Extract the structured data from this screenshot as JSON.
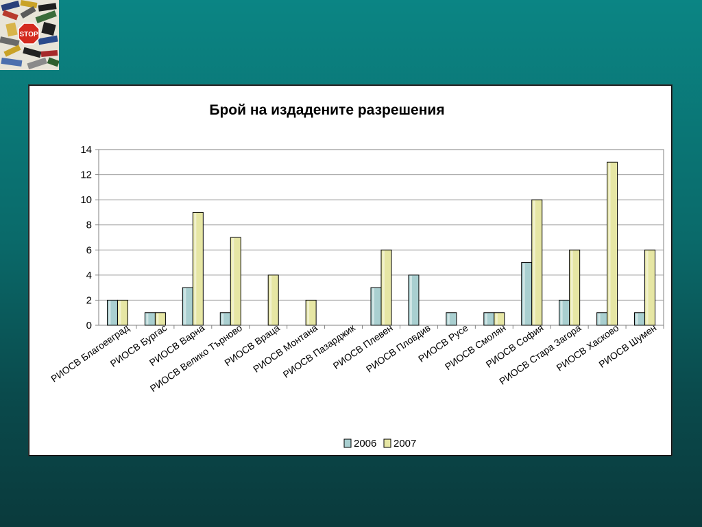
{
  "colors": {
    "series_2006": "#a9cfd0",
    "series_2007": "#e6e6a4",
    "grid": "#9a9a9a",
    "axis": "#808080"
  },
  "logo": {
    "icon": "stop-batteries-icon",
    "sign_text": "STOP"
  },
  "chart_data": {
    "type": "bar",
    "title": "Брой на издадените разрешения",
    "xlabel": "",
    "ylabel": "",
    "ylim": [
      0,
      14
    ],
    "yticks": [
      "0",
      "2",
      "4",
      "6",
      "8",
      "10",
      "12",
      "14"
    ],
    "grid": true,
    "legend": "bottom",
    "categories": [
      "РИОСВ Благоевград",
      "РИОСВ Бургас",
      "РИОСВ Варна",
      "РИОСВ Велико Търново",
      "РИОСВ Враца",
      "РИОСВ Монтана",
      "РИОСВ Пазарджик",
      "РИОСВ Плевен",
      "РИОСВ Пловдив",
      "РИОСВ Русе",
      "РИОСВ Смолян",
      "РИОСВ София",
      "РИОСВ Стара Загора",
      "РИОСВ Хасково",
      "РИОСВ Шумен"
    ],
    "series": [
      {
        "name": "2006",
        "values": [
          2,
          1,
          3,
          1,
          0,
          0,
          0,
          3,
          4,
          1,
          1,
          5,
          2,
          1,
          1
        ]
      },
      {
        "name": "2007",
        "values": [
          2,
          1,
          9,
          7,
          4,
          2,
          0,
          6,
          0,
          0,
          1,
          10,
          6,
          13,
          6
        ]
      }
    ]
  }
}
